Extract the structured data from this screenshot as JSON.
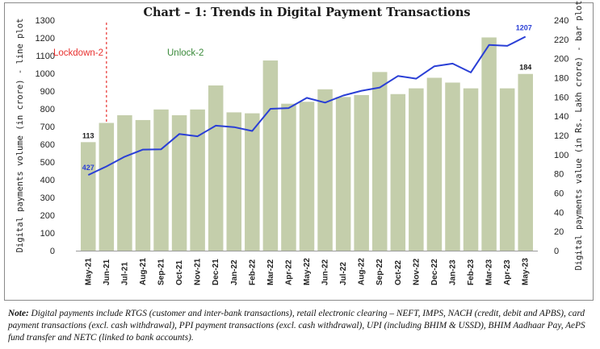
{
  "chart_data": {
    "type": "bar+line",
    "title": "Chart – 1: Trends in Digital Payment Transactions",
    "categories": [
      "May-21",
      "Jun-21",
      "Jul-21",
      "Aug-21",
      "Sep-21",
      "Oct-21",
      "Nov-21",
      "Dec-21",
      "Jan-22",
      "Feb-22",
      "Mar-22",
      "Apr-22",
      "May-22",
      "Jun-22",
      "Jul-22",
      "Aug-22",
      "Sep-22",
      "Oct-22",
      "Nov-22",
      "Dec-22",
      "Jan-23",
      "Feb-23",
      "Mar-23",
      "Apr-23",
      "May-23"
    ],
    "series": [
      {
        "type": "bar",
        "axis": "right",
        "values": [
          113,
          133,
          141,
          136,
          147,
          141,
          147,
          172,
          144,
          143,
          198,
          153,
          155,
          168,
          160,
          162,
          186,
          163,
          169,
          180,
          175,
          169,
          222,
          169,
          184
        ]
      },
      {
        "type": "line",
        "axis": "left",
        "values": [
          427,
          475,
          530,
          570,
          572,
          658,
          645,
          705,
          697,
          675,
          800,
          804,
          862,
          835,
          875,
          902,
          920,
          985,
          970,
          1040,
          1055,
          1005,
          1160,
          1155,
          1207
        ]
      }
    ],
    "data_labels": {
      "first_bar": "113",
      "last_bar": "184",
      "first_point": "427",
      "last_point": "1207"
    },
    "ylabel_left": "Digital payments volume (in crore) - line plot",
    "ylabel_right": "Digital payments value (in Rs. Lakh crore) - bar plot",
    "ylim_left": [
      0,
      1300
    ],
    "ylim_right": [
      0,
      240
    ],
    "yticks_left": [
      0,
      100,
      200,
      300,
      400,
      500,
      600,
      700,
      800,
      900,
      1000,
      1100,
      1200,
      1300
    ],
    "yticks_right": [
      0,
      20,
      40,
      60,
      80,
      100,
      120,
      140,
      160,
      180,
      200,
      220,
      240
    ],
    "annotations": [
      {
        "text": "Lockdown-2",
        "color": "#e8312f"
      },
      {
        "text": "Unlock-2",
        "color": "#3a8a3a"
      }
    ],
    "colors": {
      "bar": "#c4ceab",
      "line": "#2a3fd6",
      "line_label": "#2a3fd6",
      "bar_label": "#1a1a1a",
      "divider": "#e8312f"
    }
  },
  "note": {
    "prefix": "Note:",
    "text": " Digital payments include RTGS (customer and inter-bank transactions), retail electronic clearing – NEFT, IMPS, NACH (credit, debit and APBS), card payment transactions (excl. cash withdrawal), PPI payment transactions (excl. cash withdrawal), UPI (including BHIM & USSD), BHIM Aadhaar Pay, AePS fund transfer and NETC (linked to bank accounts)."
  }
}
